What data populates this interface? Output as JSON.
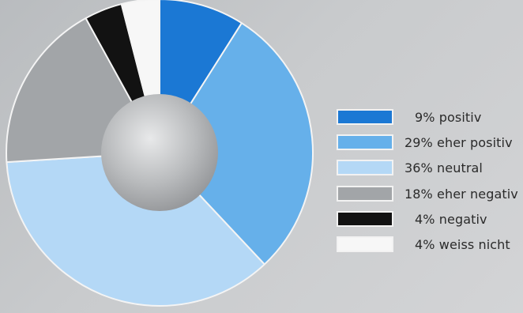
{
  "chart_data": {
    "type": "pie",
    "donut": true,
    "title": "",
    "categories": [
      "positiv",
      "eher positiv",
      "neutral",
      "eher negativ",
      "negativ",
      "weiss nicht"
    ],
    "values": [
      9,
      29,
      36,
      18,
      4,
      4
    ],
    "colors": [
      "#1b78d4",
      "#66b0ea",
      "#b4d8f6",
      "#a2a5a8",
      "#121212",
      "#f7f7f7"
    ],
    "legend_labels": [
      "9% positiv",
      "29% eher positiv",
      "36% neutral",
      "18% eher negativ",
      "4% negativ",
      "4% weiss nicht"
    ],
    "legend_position": "right"
  }
}
